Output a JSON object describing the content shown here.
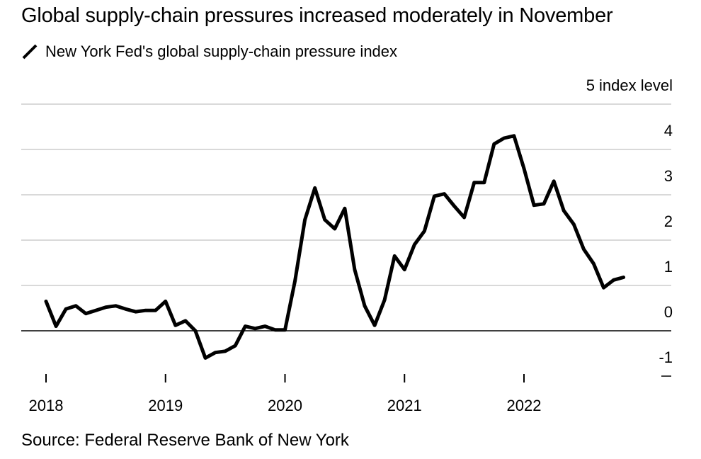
{
  "title": "Global supply-chain pressures increased moderately in November",
  "legend_label": "New York Fed's global supply-chain pressure index",
  "source": "Source: Federal Reserve Bank of New York",
  "chart_data": {
    "type": "line",
    "title": "Global supply-chain pressures increased moderately in November",
    "ylabel": "index level",
    "ylim": [
      -1,
      5
    ],
    "y_ticks": [
      "5",
      "4",
      "3",
      "2",
      "1",
      "0",
      "-1"
    ],
    "y_tick_values": [
      5,
      4,
      3,
      2,
      1,
      0,
      -1
    ],
    "x_tick_labels": [
      "2018",
      "2019",
      "2020",
      "2021",
      "2022"
    ],
    "x_tick_values": [
      2018,
      2019,
      2020,
      2021,
      2022
    ],
    "color": "#000000",
    "series": [
      {
        "name": "New York Fed's global supply-chain pressure index",
        "x": [
          2018.0,
          2018.0833,
          2018.1667,
          2018.25,
          2018.3333,
          2018.4167,
          2018.5,
          2018.5833,
          2018.6667,
          2018.75,
          2018.8333,
          2018.9167,
          2019.0,
          2019.0833,
          2019.1667,
          2019.25,
          2019.3333,
          2019.4167,
          2019.5,
          2019.5833,
          2019.6667,
          2019.75,
          2019.8333,
          2019.9167,
          2020.0,
          2020.0833,
          2020.1667,
          2020.25,
          2020.3333,
          2020.4167,
          2020.5,
          2020.5833,
          2020.6667,
          2020.75,
          2020.8333,
          2020.9167,
          2021.0,
          2021.0833,
          2021.1667,
          2021.25,
          2021.3333,
          2021.4167,
          2021.5,
          2021.5833,
          2021.6667,
          2021.75,
          2021.8333,
          2021.9167,
          2022.0,
          2022.0833,
          2022.1667,
          2022.25,
          2022.3333,
          2022.4167,
          2022.5,
          2022.5833,
          2022.6667,
          2022.75,
          2022.8333
        ],
        "values": [
          0.65,
          0.1,
          0.48,
          0.55,
          0.38,
          0.45,
          0.52,
          0.55,
          0.48,
          0.42,
          0.45,
          0.45,
          0.65,
          0.12,
          0.22,
          0.0,
          -0.6,
          -0.48,
          -0.45,
          -0.33,
          0.1,
          0.05,
          0.1,
          0.02,
          0.02,
          1.1,
          2.45,
          3.15,
          2.45,
          2.25,
          2.7,
          1.35,
          0.55,
          0.12,
          0.68,
          1.65,
          1.35,
          1.9,
          2.2,
          2.97,
          3.02,
          2.75,
          2.5,
          3.27,
          3.27,
          4.12,
          4.25,
          4.3,
          3.58,
          2.77,
          2.8,
          3.3,
          2.65,
          2.35,
          1.8,
          1.48,
          0.95,
          1.12,
          1.18
        ]
      }
    ]
  }
}
